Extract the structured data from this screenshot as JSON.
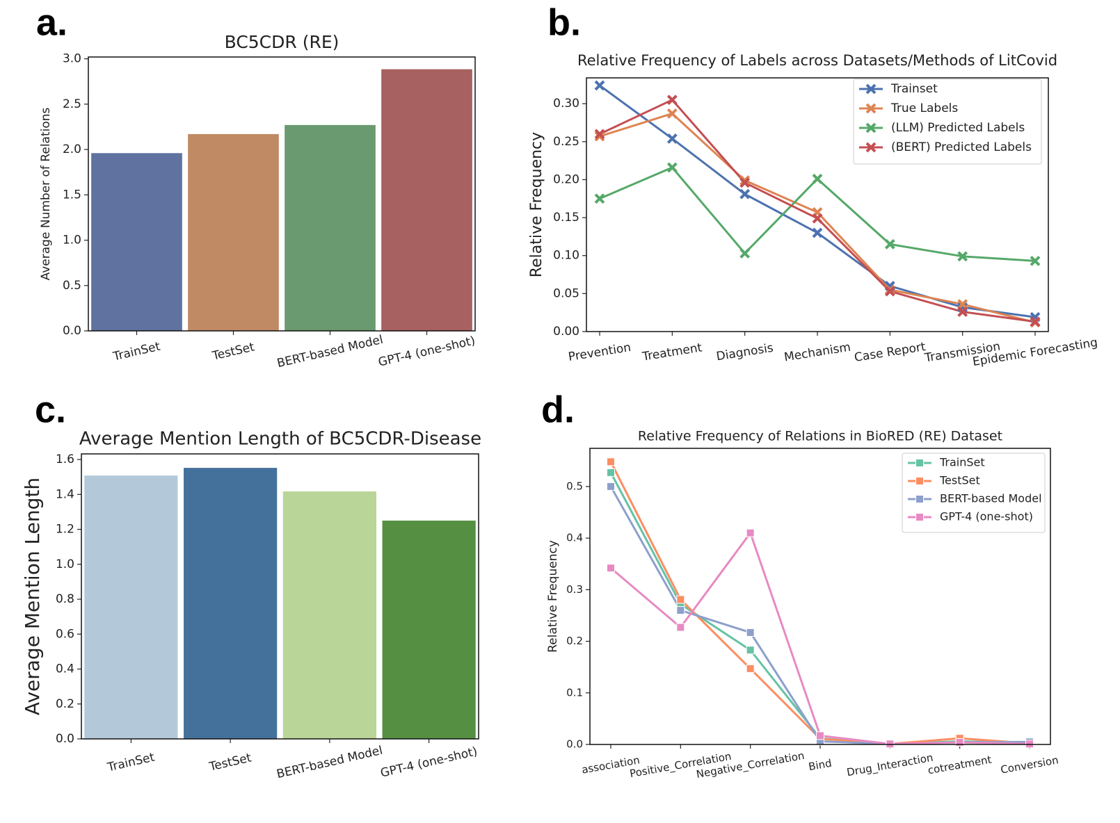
{
  "chart_data": [
    {
      "panel": "a.",
      "type": "bar",
      "title": "BC5CDR (RE)",
      "y_label": "Average Number of Relations",
      "categories": [
        "TrainSet",
        "TestSet",
        "BERT-based Model",
        "GPT-4 (one-shot)"
      ],
      "values": [
        1.96,
        2.17,
        2.27,
        2.885
      ],
      "colors": [
        "#5f72a0",
        "#c08a64",
        "#6a9a6f",
        "#a66160"
      ],
      "ylim": [
        0,
        3.02
      ],
      "yticks": [
        {
          "value": 0,
          "label": "0.0"
        },
        0.5,
        {
          "value": 1,
          "label": "1.0"
        },
        1.5,
        {
          "value": 2,
          "label": "2.0"
        },
        2.5,
        {
          "value": 3,
          "label": "3.0"
        }
      ],
      "grid": false
    },
    {
      "panel": "b.",
      "type": "line",
      "marker": "x",
      "title": "Relative Frequency of Labels across Datasets/Methods of LitCovid",
      "y_label": "Relative Frequency",
      "categories": [
        "Prevention",
        "Treatment",
        "Diagnosis",
        "Mechanism",
        "Case Report",
        "Transmission",
        "Epidemic Forecasting"
      ],
      "series": [
        {
          "name": "Trainset",
          "color": "#4c72b0",
          "values": [
            0.324,
            0.254,
            0.181,
            0.13,
            0.06,
            0.032,
            0.019
          ]
        },
        {
          "name": "True Labels",
          "color": "#dd8452",
          "values": [
            0.257,
            0.287,
            0.199,
            0.157,
            0.055,
            0.036,
            0.012
          ]
        },
        {
          "name": "(LLM) Predicted Labels",
          "color": "#55a868",
          "values": [
            0.175,
            0.216,
            0.103,
            0.201,
            0.115,
            0.099,
            0.093
          ]
        },
        {
          "name": "(BERT) Predicted Labels",
          "color": "#c44e52",
          "values": [
            0.26,
            0.305,
            0.196,
            0.149,
            0.053,
            0.026,
            0.013
          ]
        }
      ],
      "ylim": [
        0,
        0.334
      ],
      "yticks": [
        {
          "value": 0,
          "label": "0.00"
        },
        0.05,
        {
          "value": 0.1,
          "label": "0.10"
        },
        0.15,
        {
          "value": 0.2,
          "label": "0.20"
        },
        0.25,
        {
          "value": 0.3,
          "label": "0.30"
        }
      ],
      "legend": "upper right",
      "grid": false
    },
    {
      "panel": "c.",
      "type": "bar",
      "title": "Average Mention Length of BC5CDR-Disease",
      "y_label": "Average Mention Length",
      "categories": [
        "TrainSet",
        "TestSet",
        "BERT-based Model",
        "GPT-4 (one-shot)"
      ],
      "values": [
        1.508,
        1.552,
        1.417,
        1.25
      ],
      "colors": [
        "#b3c9da",
        "#44719b",
        "#b9d598",
        "#558f42"
      ],
      "ylim": [
        0,
        1.632
      ],
      "yticks": [
        {
          "value": 0,
          "label": "0.0"
        },
        0.2,
        0.4,
        0.6,
        0.8,
        {
          "value": 1,
          "label": "1.0"
        },
        1.2,
        1.4,
        1.6
      ],
      "grid": false
    },
    {
      "panel": "d.",
      "type": "line",
      "marker": "square",
      "title": "Relative Frequency of Relations in BioRED (RE) Dataset",
      "y_label": "Relative Frequency",
      "categories": [
        "association",
        "Positive_Correlation",
        "Negative_Correlation",
        "Bind",
        "Drug_Interaction",
        "cotreatment",
        "Conversion"
      ],
      "series": [
        {
          "name": "TrainSet",
          "color": "#66c2a5",
          "values": [
            0.527,
            0.272,
            0.183,
            0.012,
            0.001,
            0.006,
            0.003
          ]
        },
        {
          "name": "TestSet",
          "color": "#fc8d62",
          "values": [
            0.548,
            0.281,
            0.147,
            0.011,
            0.001,
            0.012,
            0.002
          ]
        },
        {
          "name": "BERT-based Model",
          "color": "#8da0cb",
          "values": [
            0.5,
            0.26,
            0.217,
            0.006,
            0.001,
            0.004,
            0.005
          ]
        },
        {
          "name": "GPT-4 (one-shot)",
          "color": "#e78ac3",
          "values": [
            0.342,
            0.227,
            0.41,
            0.017,
            0.001,
            0.004,
            0.001
          ]
        }
      ],
      "ylim": [
        0,
        0.574
      ],
      "yticks": [
        {
          "value": 0,
          "label": "0.0"
        },
        0.1,
        0.2,
        0.3,
        0.4,
        0.5
      ],
      "legend": "upper right",
      "grid": false
    }
  ]
}
